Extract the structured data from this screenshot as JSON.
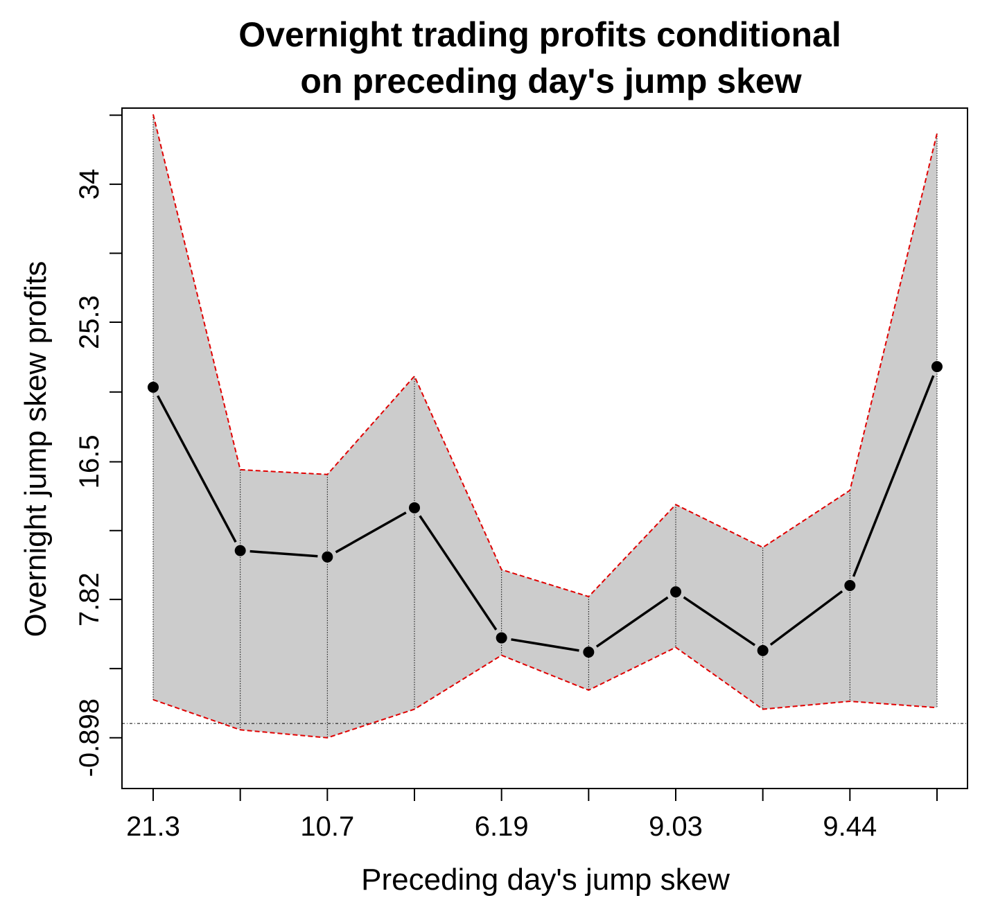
{
  "chart_data": {
    "type": "line",
    "title_lines": [
      "Overnight trading profits conditional",
      "on preceding day's jump skew"
    ],
    "xlabel": "Preceding day's jump skew",
    "ylabel": "Overnight jump skew profits",
    "x_tick_labels": [
      "21.3",
      "",
      "10.7",
      "",
      "6.19",
      "",
      "9.03",
      "",
      "9.44",
      ""
    ],
    "y_ticks": [
      -0.898,
      7.82,
      16.5,
      25.3,
      34
    ],
    "y_tick_labels": [
      "-0.898",
      "7.82",
      "16.5",
      "25.3",
      "34"
    ],
    "ylim": [
      -4.1,
      38.8
    ],
    "reference_line_y": 0.0,
    "series": [
      {
        "values": [
          21.2,
          10.9,
          10.5,
          13.6,
          5.4,
          4.5,
          8.3,
          4.6,
          8.7,
          22.5
        ]
      }
    ],
    "band": {
      "upper": [
        38.4,
        16.0,
        15.7,
        21.9,
        9.7,
        8.0,
        13.8,
        11.1,
        14.7,
        37.2
      ],
      "lower": [
        1.5,
        -0.4,
        -0.9,
        0.9,
        4.3,
        2.1,
        4.8,
        0.9,
        1.4,
        1.0
      ]
    },
    "colors": {
      "band_fill": "#cccccc",
      "band_edge": "#e00000",
      "line": "#000000",
      "point": "#000000"
    },
    "grid": false
  }
}
